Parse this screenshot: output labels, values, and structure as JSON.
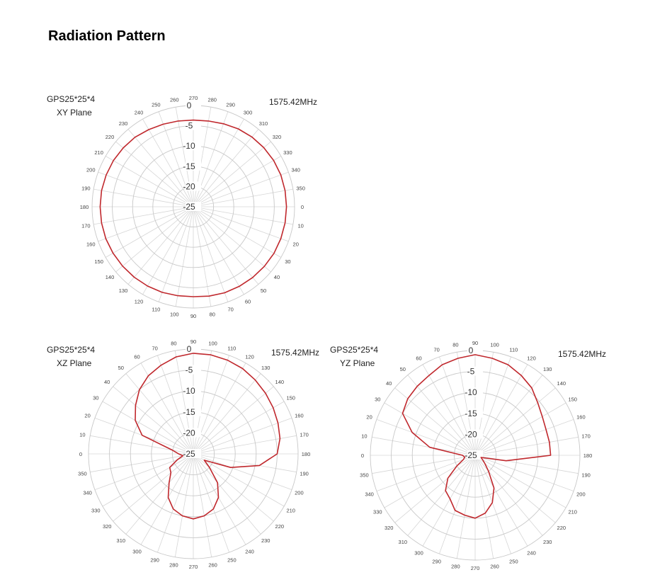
{
  "page": {
    "title": "Radiation Pattern"
  },
  "chart_data": [
    {
      "type": "polar",
      "id": "xy",
      "title": [
        "GPS25*25*4",
        "XY Plane"
      ],
      "frequency": "1575.42MHz",
      "angle_ticks": [
        0,
        10,
        20,
        30,
        40,
        50,
        60,
        70,
        80,
        90,
        100,
        110,
        120,
        130,
        140,
        150,
        160,
        170,
        180,
        190,
        200,
        210,
        220,
        230,
        240,
        250,
        260,
        270,
        280,
        290,
        300,
        310,
        320,
        330,
        340,
        350
      ],
      "angle_at_top": 270,
      "radial_ticks": [
        "-25",
        "-20",
        "-15",
        "-10",
        "-5",
        "0"
      ],
      "rlim": [
        -25,
        0
      ],
      "grid": true,
      "series": [
        {
          "color": "#c0282d",
          "angles": [
            0,
            10,
            20,
            30,
            40,
            50,
            60,
            70,
            80,
            90,
            100,
            110,
            120,
            130,
            140,
            150,
            160,
            170,
            180,
            190,
            200,
            210,
            220,
            230,
            240,
            250,
            260,
            270,
            280,
            290,
            300,
            310,
            320,
            330,
            340,
            350
          ],
          "values": [
            -2.0,
            -2.0,
            -2.0,
            -2.0,
            -2.1,
            -2.2,
            -2.3,
            -2.4,
            -2.6,
            -2.8,
            -2.7,
            -2.5,
            -2.4,
            -2.3,
            -2.2,
            -2.1,
            -2.0,
            -2.0,
            -2.0,
            -2.0,
            -2.1,
            -2.2,
            -2.4,
            -2.6,
            -3.0,
            -3.3,
            -3.5,
            -3.6,
            -3.5,
            -3.2,
            -2.8,
            -2.5,
            -2.3,
            -2.1,
            -2.0,
            -2.0
          ]
        }
      ]
    },
    {
      "type": "polar",
      "id": "xz",
      "title": [
        "GPS25*25*4",
        "XZ Plane"
      ],
      "frequency": "1575.42MHz",
      "angle_ticks": [
        0,
        10,
        20,
        30,
        40,
        50,
        60,
        70,
        80,
        90,
        100,
        110,
        120,
        130,
        140,
        150,
        160,
        170,
        180,
        190,
        200,
        210,
        220,
        230,
        240,
        250,
        260,
        270,
        280,
        290,
        300,
        310,
        320,
        330,
        340,
        350
      ],
      "angle_at_top": 90,
      "radial_ticks": [
        "-25",
        "-20",
        "-15",
        "-10",
        "-5",
        "0"
      ],
      "rlim": [
        -25,
        0
      ],
      "grid": true,
      "series": [
        {
          "color": "#c0282d",
          "angles": [
            0,
            10,
            20,
            30,
            40,
            50,
            60,
            70,
            80,
            90,
            100,
            110,
            120,
            130,
            140,
            150,
            160,
            170,
            180,
            190,
            200,
            210,
            220,
            230,
            240,
            250,
            260,
            270,
            280,
            290,
            300,
            310,
            320,
            330,
            340,
            350
          ],
          "values": [
            -21.5,
            -20.0,
            -12.0,
            -9.0,
            -7.0,
            -5.0,
            -3.5,
            -2.5,
            -1.5,
            -1.0,
            -1.0,
            -1.2,
            -1.5,
            -2.0,
            -2.5,
            -3.0,
            -3.5,
            -4.0,
            -5.0,
            -9.0,
            -15.5,
            -22.0,
            -20.0,
            -16.0,
            -13.0,
            -11.0,
            -10.0,
            -9.5,
            -10.0,
            -11.0,
            -13.0,
            -16.0,
            -18.0,
            -18.5,
            -21.0,
            -22.5
          ]
        }
      ]
    },
    {
      "type": "polar",
      "id": "yz",
      "title": [
        "GPS25*25*4",
        "YZ Plane"
      ],
      "frequency": "1575.42MHz",
      "angle_ticks": [
        0,
        10,
        20,
        30,
        40,
        50,
        60,
        70,
        80,
        90,
        100,
        110,
        120,
        130,
        140,
        150,
        160,
        170,
        180,
        190,
        200,
        210,
        220,
        230,
        240,
        250,
        260,
        270,
        280,
        290,
        300,
        310,
        320,
        330,
        340,
        350
      ],
      "angle_at_top": 90,
      "radial_ticks": [
        "-25",
        "-20",
        "-15",
        "-10",
        "-5",
        "0"
      ],
      "rlim": [
        -25,
        0
      ],
      "grid": true,
      "series": [
        {
          "color": "#c0282d",
          "angles": [
            0,
            10,
            20,
            30,
            40,
            50,
            60,
            70,
            80,
            90,
            100,
            110,
            120,
            130,
            140,
            150,
            160,
            170,
            180,
            190,
            200,
            210,
            220,
            230,
            240,
            250,
            260,
            270,
            280,
            290,
            300,
            310,
            320,
            330,
            340,
            350
          ],
          "values": [
            -22.0,
            -14.0,
            -9.0,
            -5.0,
            -4.0,
            -3.5,
            -3.0,
            -2.0,
            -1.5,
            -1.0,
            -1.5,
            -2.0,
            -3.0,
            -4.0,
            -5.5,
            -6.5,
            -7.0,
            -7.0,
            -7.0,
            -17.5,
            -23.5,
            -23.0,
            -22.0,
            -20.0,
            -16.0,
            -13.0,
            -11.0,
            -10.0,
            -10.5,
            -11.0,
            -13.0,
            -14.0,
            -16.5,
            -20.0,
            -22.0,
            -22.5
          ]
        }
      ]
    }
  ]
}
